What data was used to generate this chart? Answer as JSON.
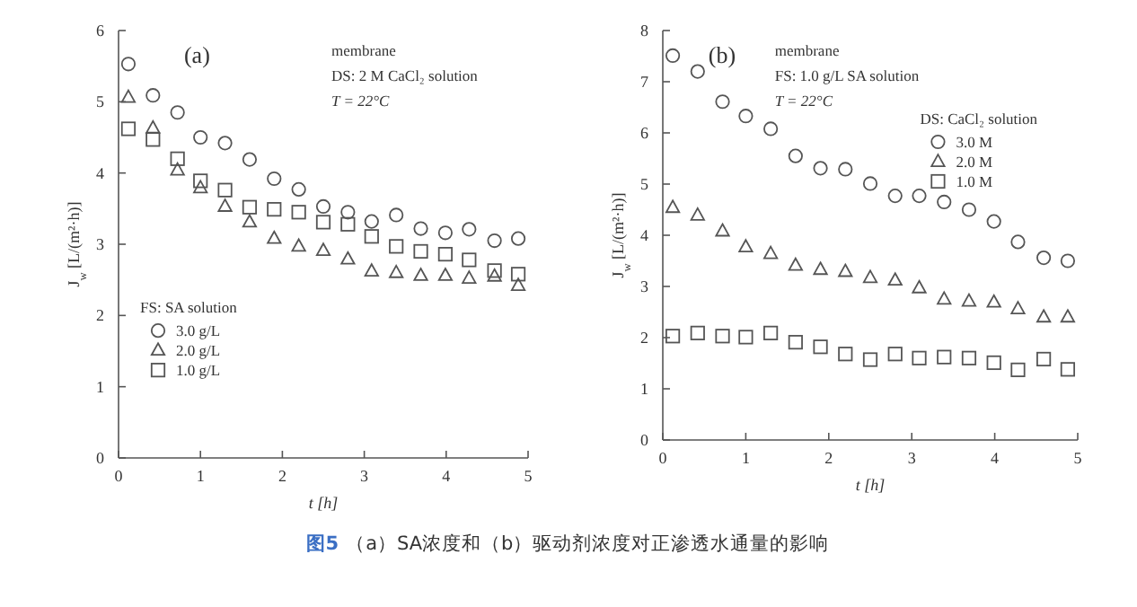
{
  "chart_data": [
    {
      "type": "scatter",
      "xlabel": "t [h]",
      "ylabel": "J$_{w}$ [L/(m²·h)]",
      "xlim": [
        0,
        5
      ],
      "ylim": [
        0,
        6
      ],
      "xticks": [
        0,
        1,
        2,
        3,
        4,
        5
      ],
      "yticks": [
        0,
        1,
        2,
        3,
        4,
        5,
        6
      ],
      "grid": false,
      "legend": "bottom left",
      "legend_title": "FS: SA solution",
      "annotations": [
        "(a)",
        "membrane",
        "DS: 2 M CaCl₂ solution",
        "T = 22°C",
        "图5",
        "（a）SA浓度和（b）驱动剂浓度对正渗透水通量的影响"
      ],
      "x": [
        0.12,
        0.42,
        0.72,
        1.0,
        1.3,
        1.6,
        1.9,
        2.2,
        2.5,
        2.8,
        3.09,
        3.39,
        3.69,
        3.99,
        4.28,
        4.59,
        4.88
      ],
      "series": [
        {
          "name": "3.0 g/L",
          "color": "#555555",
          "marker": "circle",
          "values": [
            5.53,
            5.09,
            4.85,
            4.5,
            4.42,
            4.19,
            3.92,
            3.77,
            3.53,
            3.45,
            3.32,
            3.41,
            3.22,
            3.16,
            3.21,
            3.05,
            3.08
          ]
        },
        {
          "name": "2.0 g/L",
          "color": "#555555",
          "marker": "triangle",
          "values": [
            5.06,
            4.63,
            4.04,
            3.79,
            3.53,
            3.31,
            3.08,
            2.97,
            2.91,
            2.79,
            2.62,
            2.6,
            2.56,
            2.56,
            2.52,
            2.55,
            2.42
          ]
        },
        {
          "name": "1.0 g/L",
          "color": "#555555",
          "marker": "square",
          "values": [
            4.62,
            4.47,
            4.2,
            3.89,
            3.76,
            3.52,
            3.49,
            3.45,
            3.31,
            3.28,
            3.11,
            2.97,
            2.9,
            2.86,
            2.78,
            2.63,
            2.58
          ]
        }
      ]
    },
    {
      "type": "scatter",
      "xlabel": "t [h]",
      "ylabel": "J$_{w}$ [L/(m²·h)]",
      "xlim": [
        0,
        5
      ],
      "ylim": [
        0,
        8
      ],
      "xticks": [
        0,
        1,
        2,
        3,
        4,
        5
      ],
      "yticks": [
        0,
        1,
        2,
        3,
        4,
        5,
        6,
        7,
        8
      ],
      "grid": false,
      "legend": "top right",
      "legend_title": "DS: CaCl₂ solution",
      "annotations": [
        "(b)",
        "membrane",
        "FS: 1.0 g/L SA solution",
        "T = 22°C"
      ],
      "x": [
        0.12,
        0.42,
        0.72,
        1.0,
        1.3,
        1.6,
        1.9,
        2.2,
        2.5,
        2.8,
        3.09,
        3.39,
        3.69,
        3.99,
        4.28,
        4.59,
        4.88
      ],
      "series": [
        {
          "name": "3.0 M",
          "color": "#555555",
          "marker": "circle",
          "values": [
            7.51,
            7.2,
            6.61,
            6.33,
            6.08,
            5.55,
            5.31,
            5.29,
            5.01,
            4.77,
            4.77,
            4.65,
            4.5,
            4.27,
            3.87,
            3.56,
            3.5
          ]
        },
        {
          "name": "2.0 M",
          "color": "#555555",
          "marker": "triangle",
          "values": [
            4.54,
            4.39,
            4.08,
            3.77,
            3.64,
            3.41,
            3.33,
            3.29,
            3.17,
            3.12,
            2.97,
            2.75,
            2.71,
            2.69,
            2.56,
            2.4,
            2.4
          ]
        },
        {
          "name": "1.0 M",
          "color": "#555555",
          "marker": "square",
          "values": [
            2.03,
            2.09,
            2.03,
            2.01,
            2.09,
            1.91,
            1.82,
            1.68,
            1.57,
            1.68,
            1.6,
            1.62,
            1.6,
            1.51,
            1.37,
            1.58,
            1.38
          ]
        }
      ]
    }
  ]
}
